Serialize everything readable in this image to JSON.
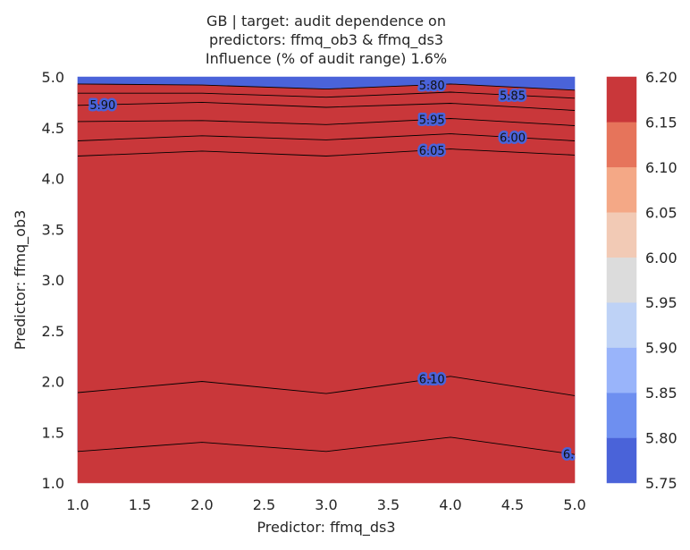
{
  "chart_data": {
    "type": "heatmap",
    "subtype": "filled-contour",
    "title": [
      "GB | target: audit dependence on",
      "predictors: ffmq_ob3 & ffmq_ds3",
      "Influence (% of audit range) 1.6%"
    ],
    "xlabel": "Predictor: ffmq_ds3",
    "ylabel": "Predictor: ffmq_ob3",
    "xlim": [
      1.0,
      5.0
    ],
    "ylim": [
      1.0,
      5.0
    ],
    "x_ticks": [
      "1.0",
      "1.5",
      "2.0",
      "2.5",
      "3.0",
      "3.5",
      "4.0",
      "4.5",
      "5.0"
    ],
    "y_ticks": [
      "1.0",
      "1.5",
      "2.0",
      "2.5",
      "3.0",
      "3.5",
      "4.0",
      "4.5",
      "5.0"
    ],
    "grid": false,
    "x": [
      1.0,
      2.0,
      3.0,
      4.0,
      5.0
    ],
    "levels": [
      5.75,
      5.8,
      5.85,
      5.9,
      5.95,
      6.0,
      6.05,
      6.1,
      6.15,
      6.2
    ],
    "level_colors": [
      "#4a63d9",
      "#6e8ff0",
      "#99b4fa",
      "#bed2f6",
      "#dcdcdc",
      "#f2cab5",
      "#f4a886",
      "#e6745b",
      "#c9373a"
    ],
    "contours": [
      {
        "level": 5.8,
        "label": "5.80",
        "y": [
          4.93,
          4.92,
          4.88,
          4.93,
          4.87
        ]
      },
      {
        "level": 5.85,
        "label": "5.85",
        "y": [
          4.84,
          4.84,
          4.8,
          4.85,
          4.79
        ]
      },
      {
        "level": 5.9,
        "label": "5.90",
        "y": [
          4.72,
          4.75,
          4.7,
          4.74,
          4.67
        ]
      },
      {
        "level": 5.95,
        "label": "5.95",
        "y": [
          4.56,
          4.57,
          4.53,
          4.59,
          4.52
        ]
      },
      {
        "level": 6.0,
        "label": "6.00",
        "y": [
          4.37,
          4.42,
          4.38,
          4.44,
          4.37
        ]
      },
      {
        "level": 6.05,
        "label": "6.05",
        "y": [
          4.22,
          4.27,
          4.22,
          4.29,
          4.23
        ]
      },
      {
        "level": 6.1,
        "label": "6.10",
        "y": [
          1.89,
          2.0,
          1.88,
          2.05,
          1.86
        ]
      },
      {
        "level": 6.15,
        "label": "6.",
        "y": [
          1.31,
          1.4,
          1.31,
          1.45,
          1.28
        ]
      }
    ],
    "colorbar": {
      "ticks": [
        "5.75",
        "5.80",
        "5.85",
        "5.90",
        "5.95",
        "6.00",
        "6.05",
        "6.10",
        "6.15",
        "6.20"
      ]
    }
  }
}
